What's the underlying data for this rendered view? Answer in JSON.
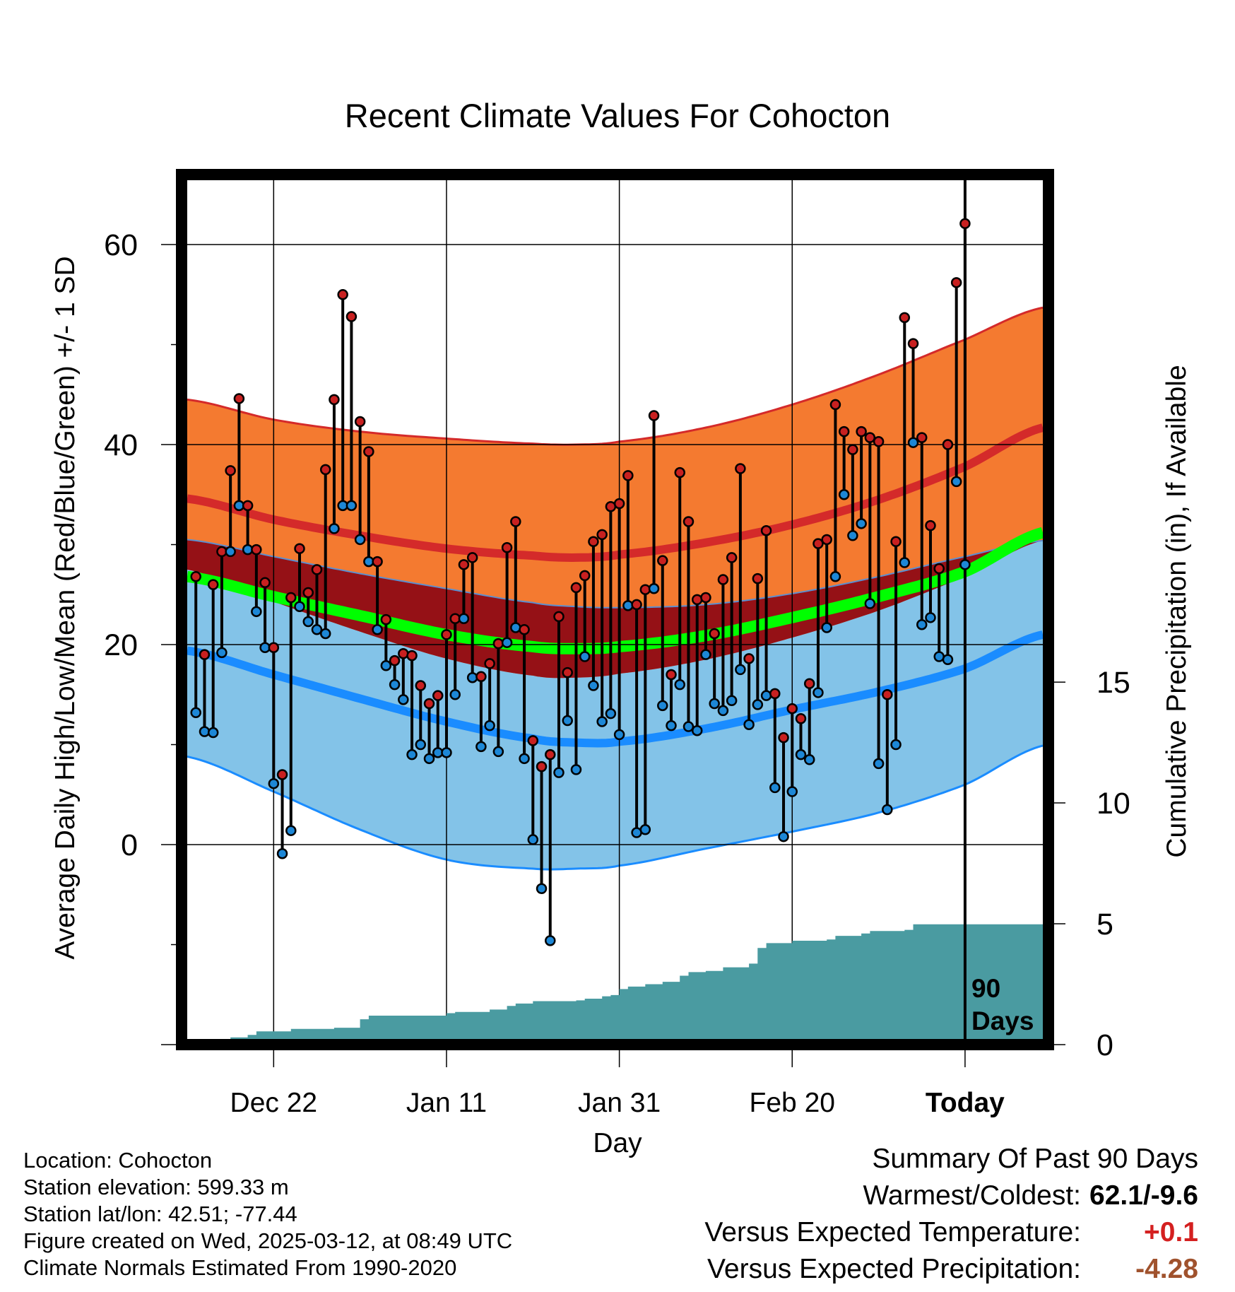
{
  "chart_data": {
    "type": "line",
    "title": "Recent Climate Values For Cohocton",
    "xlabel": "Day",
    "ylabel": "Average Daily High/Low/Mean (Red/Blue/Green) +/- 1 SD",
    "y2label": "Cumulative Precipitation (in), If Available",
    "ylim": [
      -20,
      67
    ],
    "y2lim": [
      0,
      36
    ],
    "y_ticks": [
      0,
      20,
      40,
      60
    ],
    "y2_ticks": [
      0,
      5,
      10,
      15
    ],
    "x_tick_labels": [
      {
        "day": 10,
        "label": "Dec 22"
      },
      {
        "day": 30,
        "label": "Jan 11"
      },
      {
        "day": 50,
        "label": "Jan 31"
      },
      {
        "day": 70,
        "label": "Feb 20"
      },
      {
        "day": 90,
        "label": "Today"
      }
    ],
    "xlim": [
      0,
      99
    ],
    "today_marker": {
      "day": 90,
      "label": "90 Days"
    },
    "grid": true,
    "normals": {
      "day": [
        0,
        10,
        20,
        30,
        40,
        45,
        50,
        60,
        70,
        80,
        90,
        99
      ],
      "high_plus_sd": [
        44.5,
        42.5,
        41.3,
        40.6,
        40.1,
        40.0,
        40.3,
        41.7,
        44.0,
        47.0,
        50.5,
        53.7
      ],
      "normal_high": [
        34.6,
        32.5,
        30.9,
        29.6,
        28.9,
        28.7,
        29.0,
        30.2,
        32.0,
        34.5,
        37.8,
        41.7
      ],
      "high_minus_sd": [
        27.5,
        24.3,
        21.3,
        18.6,
        16.9,
        16.7,
        17.1,
        18.5,
        20.7,
        23.4,
        26.8,
        30.4
      ],
      "low_plus_sd": [
        30.5,
        28.8,
        27.1,
        25.6,
        24.2,
        23.8,
        23.7,
        24.0,
        25.1,
        26.8,
        28.8,
        30.4
      ],
      "normal_mean": [
        26.8,
        24.8,
        22.9,
        21.0,
        19.8,
        19.6,
        19.8,
        20.9,
        22.7,
        24.8,
        27.3,
        31.2
      ],
      "normal_low": [
        19.4,
        17.0,
        14.6,
        12.3,
        10.6,
        10.2,
        10.3,
        11.6,
        13.5,
        15.3,
        17.6,
        21.0
      ],
      "low_minus_sd": [
        8.8,
        5.3,
        1.5,
        -1.5,
        -2.4,
        -2.4,
        -2.1,
        -0.4,
        1.3,
        3.2,
        6.0,
        9.9
      ]
    },
    "series": [
      {
        "name": "High",
        "values": [
          26.8,
          19.0,
          26.0,
          29.3,
          37.4,
          44.6,
          33.9,
          29.5,
          26.2,
          19.7,
          7.0,
          24.7,
          29.6,
          25.2,
          27.5,
          37.5,
          44.5,
          55.0,
          52.8,
          42.3,
          39.3,
          28.3,
          22.5,
          18.4,
          19.1,
          18.9,
          15.9,
          14.1,
          14.9,
          21.0,
          22.6,
          28.0,
          28.7,
          16.8,
          18.1,
          20.1,
          29.7,
          32.3,
          21.5,
          10.4,
          7.8,
          9.0,
          22.8,
          17.2,
          25.7,
          26.9,
          30.3,
          31.0,
          33.8,
          34.1,
          36.9,
          24.0,
          25.5,
          42.9,
          28.4,
          17.0,
          37.2,
          32.3,
          24.5,
          24.7,
          21.1,
          26.5,
          28.7,
          37.6,
          18.6,
          26.6,
          31.4,
          15.1,
          10.7,
          13.6,
          12.6,
          16.1,
          30.1,
          30.5,
          44.0,
          41.3,
          39.5,
          41.3,
          40.7,
          40.3,
          15.0,
          30.3,
          52.7,
          50.1,
          40.7,
          31.9,
          27.6,
          40.0,
          56.2,
          62.1
        ]
      },
      {
        "name": "Low",
        "values": [
          13.2,
          11.3,
          11.2,
          19.2,
          29.3,
          33.9,
          29.5,
          23.3,
          19.7,
          6.1,
          -0.9,
          1.4,
          23.8,
          22.3,
          21.5,
          21.1,
          31.6,
          33.9,
          33.9,
          30.5,
          28.3,
          21.5,
          17.9,
          16.0,
          14.5,
          9.0,
          10.0,
          8.6,
          9.2,
          9.2,
          15.0,
          22.6,
          16.7,
          9.8,
          11.9,
          9.3,
          20.2,
          21.7,
          8.6,
          0.5,
          -4.4,
          -9.6,
          7.2,
          12.4,
          7.5,
          18.8,
          15.9,
          12.3,
          13.1,
          11.0,
          23.9,
          1.2,
          1.5,
          25.6,
          13.9,
          11.9,
          16.0,
          11.8,
          11.4,
          19.0,
          14.1,
          13.4,
          14.4,
          17.5,
          12.0,
          14.0,
          14.9,
          5.7,
          0.8,
          5.3,
          9.0,
          8.5,
          15.2,
          21.7,
          26.8,
          35.0,
          30.9,
          32.1,
          24.1,
          8.1,
          3.5,
          10.0,
          28.2,
          40.2,
          22.0,
          22.7,
          18.8,
          18.5,
          36.3,
          28.0
        ]
      }
    ],
    "precip_cumulative": {
      "day": [
        0,
        4,
        5,
        7,
        8,
        12,
        17,
        20,
        21,
        30,
        31,
        35,
        37,
        38,
        40,
        45,
        46,
        48,
        49,
        50,
        51,
        53,
        55,
        57,
        58,
        60,
        62,
        65,
        66,
        67,
        70,
        74,
        75,
        78,
        79,
        83,
        84,
        90,
        99
      ],
      "value": [
        0,
        0,
        0.3,
        0.4,
        0.55,
        0.65,
        0.7,
        1.05,
        1.2,
        1.3,
        1.35,
        1.45,
        1.6,
        1.7,
        1.8,
        1.83,
        1.9,
        2.0,
        2.05,
        2.3,
        2.4,
        2.5,
        2.6,
        2.85,
        3.0,
        3.05,
        3.2,
        3.35,
        4.0,
        4.2,
        4.3,
        4.35,
        4.5,
        4.6,
        4.7,
        4.75,
        4.98,
        4.98,
        4.98
      ]
    }
  },
  "info": {
    "location": "Location: Cohocton",
    "elevation": "Station elevation: 599.33 m",
    "latlon": "Station lat/lon: 42.51; -77.44",
    "created": "Figure created on Wed, 2025-03-12, at 08:49 UTC",
    "normals": "Climate Normals Estimated From 1990-2020"
  },
  "summary": {
    "title": "Summary Of Past 90 Days",
    "warmest_label": "Warmest/Coldest:",
    "warmest_value": "62.1/-9.6",
    "temp_label": "Versus Expected Temperature:",
    "temp_value": "+0.1",
    "precip_label": "Versus Expected Precipitation:",
    "precip_value": "-4.28"
  },
  "colors": {
    "high_band": "#f47a30",
    "high_line": "#d42a2a",
    "overlap_band": "#951116",
    "mean_line": "#00ff00",
    "low_band": "#83c3e8",
    "low_line": "#1a8cff",
    "precip": "#4a9ba1",
    "high_point": "#c82020",
    "low_point": "#1d87d6",
    "temp_delta": "#d42020",
    "precip_delta": "#a0522d"
  }
}
